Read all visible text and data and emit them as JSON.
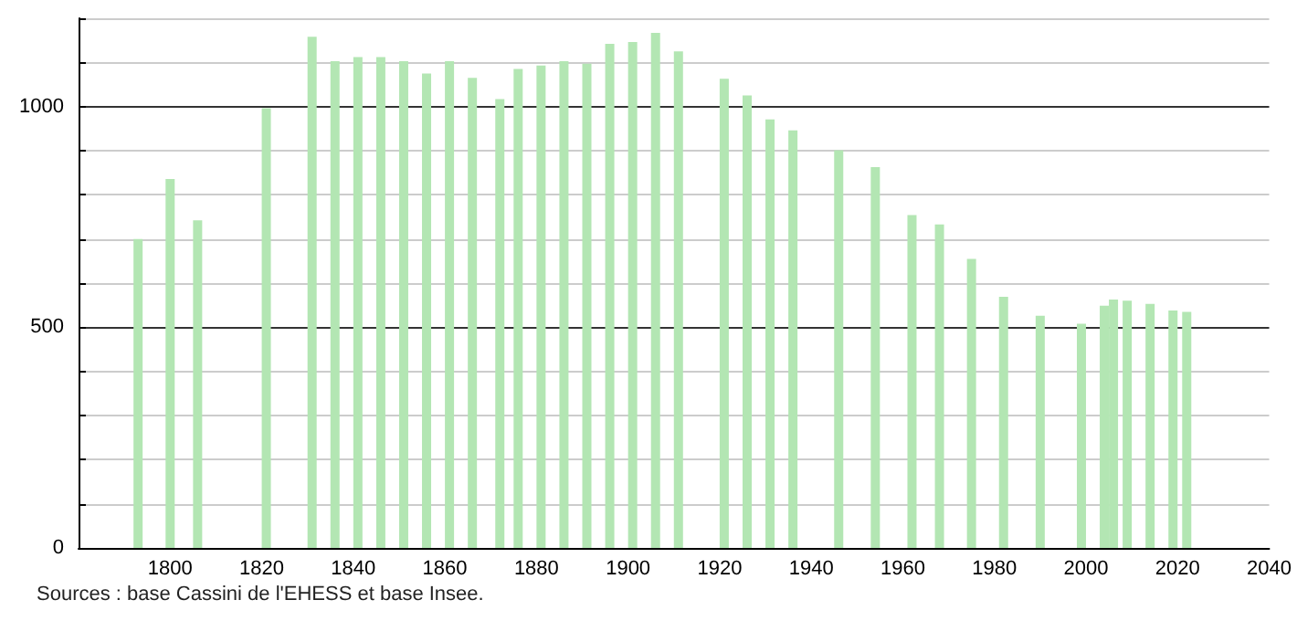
{
  "chart_data": {
    "type": "bar",
    "x": [
      1793,
      1800,
      1806,
      1821,
      1831,
      1836,
      1841,
      1846,
      1851,
      1856,
      1861,
      1866,
      1872,
      1876,
      1881,
      1886,
      1891,
      1896,
      1901,
      1906,
      1911,
      1921,
      1926,
      1931,
      1936,
      1946,
      1954,
      1962,
      1968,
      1975,
      1982,
      1990,
      1999,
      2004,
      2006,
      2009,
      2014,
      2019,
      2022
    ],
    "values": [
      700,
      836,
      742,
      996,
      1158,
      1103,
      1112,
      1112,
      1103,
      1075,
      1103,
      1065,
      1017,
      1085,
      1093,
      1103,
      1097,
      1142,
      1146,
      1167,
      1125,
      1063,
      1025,
      971,
      946,
      901,
      863,
      754,
      733,
      655,
      569,
      526,
      508,
      549,
      563,
      560,
      553,
      538,
      535
    ],
    "color": "#b3e6b3",
    "xlim": [
      1780,
      2040
    ],
    "xticks": [
      1800,
      1820,
      1840,
      1860,
      1880,
      1900,
      1920,
      1940,
      1960,
      1980,
      2000,
      2020,
      2040
    ],
    "ylim": [
      0,
      1200
    ],
    "yticks": [
      0,
      {
        "value": 100,
        "label": null
      },
      {
        "value": 200,
        "label": null
      },
      {
        "value": 300,
        "label": null
      },
      {
        "value": 400,
        "label": null
      },
      500,
      {
        "value": 600,
        "label": null
      },
      {
        "value": 700,
        "label": null
      },
      {
        "value": 800,
        "label": null
      },
      {
        "value": 900,
        "label": null
      },
      1000,
      {
        "value": 1100,
        "label": null
      },
      {
        "value": 1200,
        "label": null
      }
    ],
    "grid": "y",
    "annotations": [
      "Sources : base Cassini de l'EHESS et base Insee."
    ]
  }
}
